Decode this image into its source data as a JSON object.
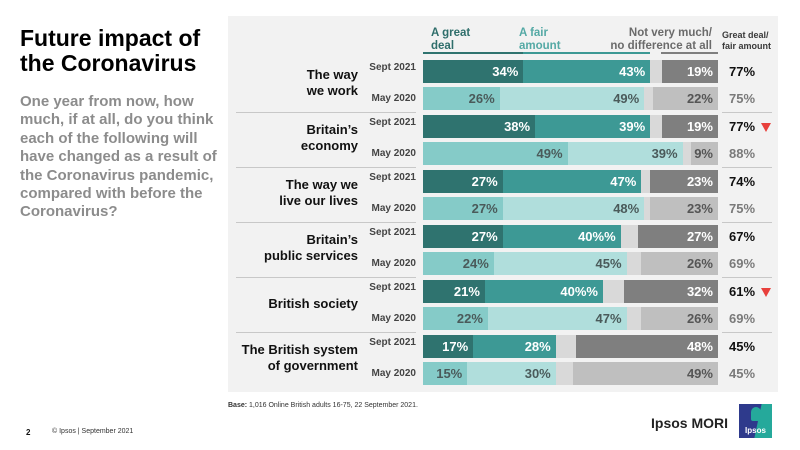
{
  "header": {
    "title": "Future impact of the Coronavirus",
    "question": "One year from now, how much, if at all, do you think each of the following will have changed as a result of the Coronavirus pandemic, compared with before the Coronavirus?"
  },
  "colors": {
    "great_2021": "#2f736f",
    "fair_2021": "#3d9995",
    "great_2020": "#85cbc8",
    "fair_2020": "#b0dedc",
    "gap": "#d9d9d9",
    "not_2021": "#7f7f7f",
    "not_2020": "#bfbfbf",
    "down_marker": "#e8403c"
  },
  "chart_data": {
    "type": "bar",
    "orientation": "horizontal-stacked",
    "title": "Future impact of the Coronavirus",
    "legend": [
      {
        "key": "great",
        "label": "A great deal"
      },
      {
        "key": "fair",
        "label": "A fair amount"
      },
      {
        "key": "not",
        "label": "Not very much/ no difference at all"
      },
      {
        "key": "total",
        "label": "Great deal/ fair amount"
      }
    ],
    "legend_placement": "top",
    "groups": [
      {
        "label": "The way we work",
        "rows": [
          {
            "period": "Sept 2021",
            "great": 34,
            "fair": 43,
            "not": 19,
            "total": 77,
            "change_marker": null
          },
          {
            "period": "May 2020",
            "great": 26,
            "fair": 49,
            "not": 22,
            "total": 75,
            "change_marker": null
          }
        ]
      },
      {
        "label": "Britain’s economy",
        "rows": [
          {
            "period": "Sept 2021",
            "great": 38,
            "fair": 39,
            "not": 19,
            "total": 77,
            "change_marker": "down"
          },
          {
            "period": "May 2020",
            "great": 49,
            "fair": 39,
            "not": 9,
            "total": 88,
            "change_marker": null
          }
        ]
      },
      {
        "label": "The way we live our lives",
        "rows": [
          {
            "period": "Sept 2021",
            "great": 27,
            "fair": 47,
            "not": 23,
            "total": 74,
            "change_marker": null
          },
          {
            "period": "May 2020",
            "great": 27,
            "fair": 48,
            "not": 23,
            "total": 75,
            "change_marker": null
          }
        ]
      },
      {
        "label": "Britain’s public services",
        "rows": [
          {
            "period": "Sept 2021",
            "great": 27,
            "fair": 40,
            "fair_label": "40%%",
            "not": 27,
            "total": 67,
            "change_marker": null
          },
          {
            "period": "May 2020",
            "great": 24,
            "fair": 45,
            "not": 26,
            "total": 69,
            "change_marker": null
          }
        ]
      },
      {
        "label": "British society",
        "rows": [
          {
            "period": "Sept 2021",
            "great": 21,
            "fair": 40,
            "fair_label": "40%%",
            "not": 32,
            "total": 61,
            "change_marker": "down"
          },
          {
            "period": "May 2020",
            "great": 22,
            "fair": 47,
            "not": 26,
            "total": 69,
            "change_marker": null
          }
        ]
      },
      {
        "label": "The British system of government",
        "rows": [
          {
            "period": "Sept 2021",
            "great": 17,
            "fair": 28,
            "not": 48,
            "total": 45,
            "change_marker": null
          },
          {
            "period": "May 2020",
            "great": 15,
            "fair": 30,
            "not": 49,
            "total": 45,
            "change_marker": null
          }
        ]
      }
    ]
  },
  "legend_text": {
    "great_line1": "A great",
    "great_line2": "deal",
    "fair_line1": "A fair",
    "fair_line2": "amount",
    "not_line1": "Not very much/",
    "not_line2": "no difference at all",
    "total_line1": "Great deal/",
    "total_line2": "fair amount"
  },
  "group_labels_lines": [
    [
      "The way",
      "we work"
    ],
    [
      "Britain’s",
      "economy"
    ],
    [
      "The way we",
      "live our lives"
    ],
    [
      "Britain’s",
      "public services"
    ],
    [
      "British society"
    ],
    [
      "The British system",
      "of government"
    ]
  ],
  "footer": {
    "base_label": "Base:",
    "base_text": " 1,016 Online British adults 16-75, 22 September 2021.",
    "page_number": "2",
    "copyright": "© Ipsos | September 2021",
    "brand": "Ipsos MORI",
    "logo_text": "Ipsos"
  }
}
